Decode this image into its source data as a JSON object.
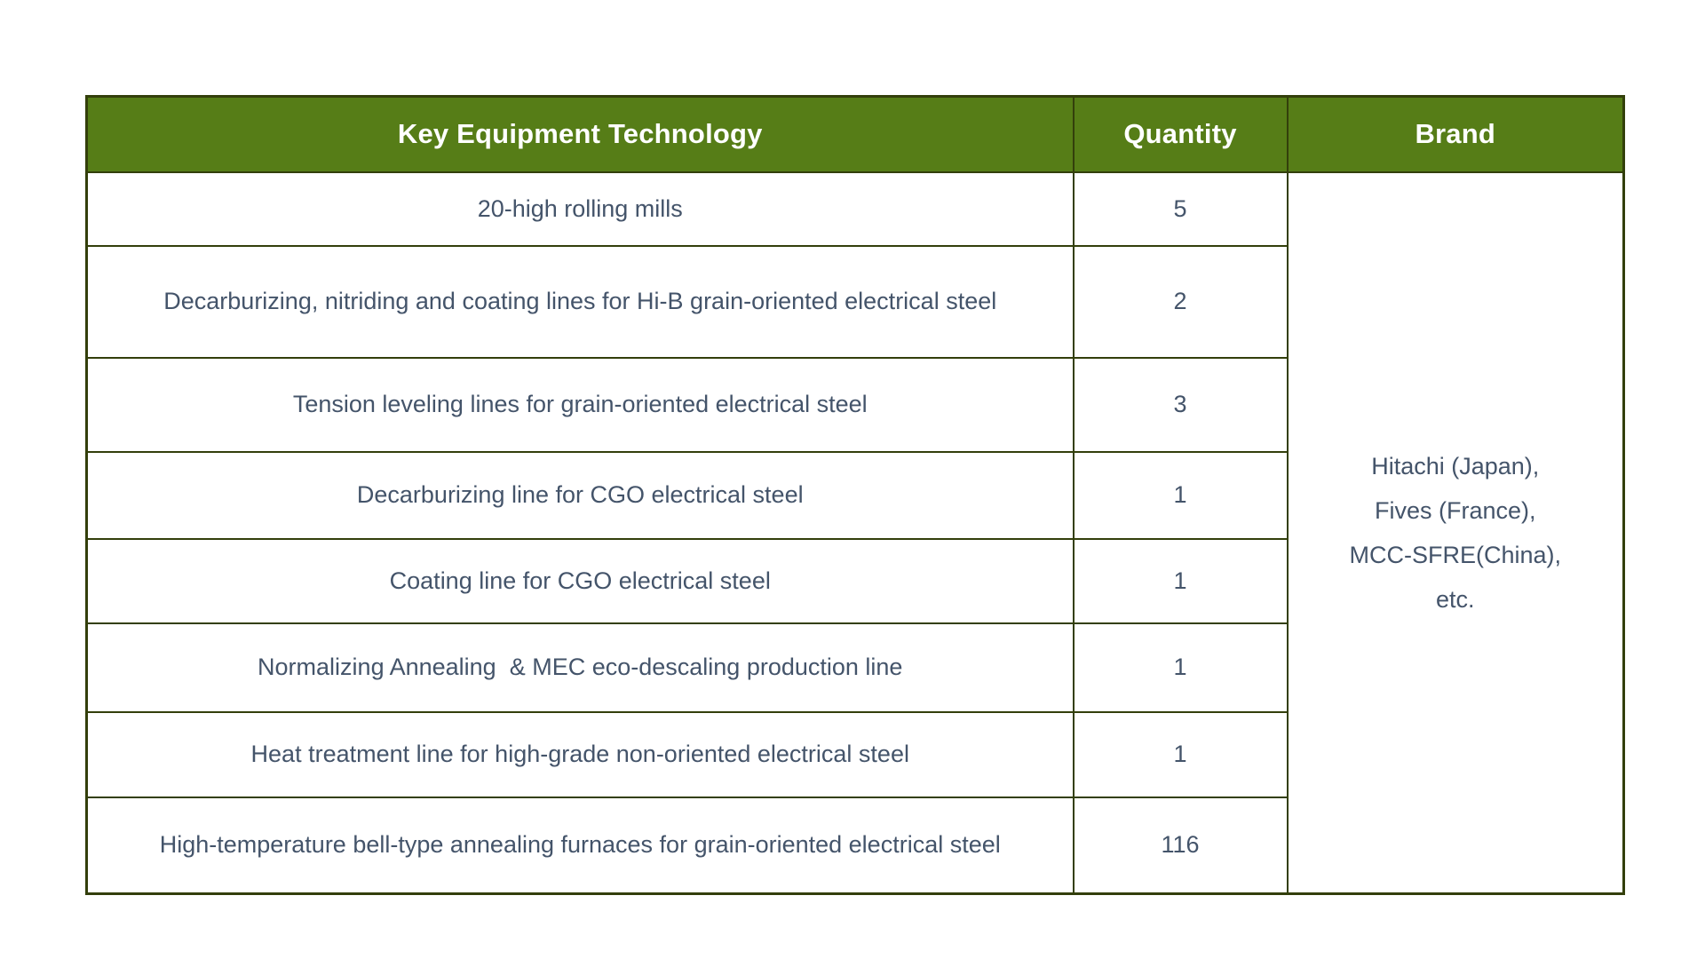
{
  "page": {
    "background_color": "#ffffff"
  },
  "table": {
    "colors": {
      "header_bg": "#567d17",
      "header_text": "#ffffff",
      "border": "#333f0b",
      "body_text": "#44546a"
    },
    "header": {
      "tech": "Key Equipment Technology",
      "quantity": "Quantity",
      "brand": "Brand"
    },
    "rows": [
      {
        "tech": "20-high rolling mills",
        "qty": "5"
      },
      {
        "tech": "Decarburizing, nitriding and coating lines for Hi-B grain-oriented electrical steel",
        "qty": "2"
      },
      {
        "tech": "Tension leveling lines for grain-oriented electrical steel",
        "qty": "3"
      },
      {
        "tech": "Decarburizing line for CGO electrical steel",
        "qty": "1"
      },
      {
        "tech": "Coating line for CGO electrical steel",
        "qty": "1"
      },
      {
        "tech": "Normalizing Annealing  & MEC eco-descaling production line",
        "qty": "1"
      },
      {
        "tech": "Heat treatment line for high-grade non-oriented electrical steel",
        "qty": "1"
      },
      {
        "tech": "High-temperature bell-type annealing furnaces for grain-oriented electrical steel",
        "qty": "116"
      }
    ],
    "brand": {
      "lines": [
        "Hitachi (Japan),",
        "Fives (France),",
        "MCC-SFRE(China),",
        "etc."
      ]
    }
  }
}
